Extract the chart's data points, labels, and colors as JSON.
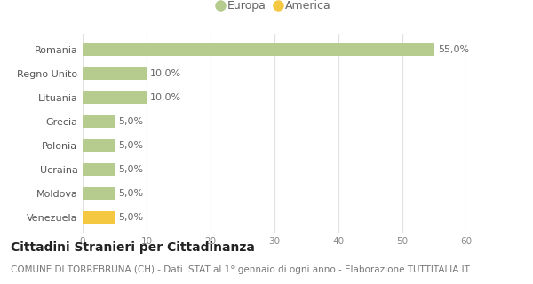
{
  "categories": [
    "Venezuela",
    "Moldova",
    "Ucraina",
    "Polonia",
    "Grecia",
    "Lituania",
    "Regno Unito",
    "Romania"
  ],
  "values": [
    5.0,
    5.0,
    5.0,
    5.0,
    5.0,
    10.0,
    10.0,
    55.0
  ],
  "colors": [
    "#f5c842",
    "#b5cc8e",
    "#b5cc8e",
    "#b5cc8e",
    "#b5cc8e",
    "#b5cc8e",
    "#b5cc8e",
    "#b5cc8e"
  ],
  "labels": [
    "5,0%",
    "5,0%",
    "5,0%",
    "5,0%",
    "5,0%",
    "10,0%",
    "10,0%",
    "55,0%"
  ],
  "legend": [
    {
      "label": "Europa",
      "color": "#b5cc8e"
    },
    {
      "label": "America",
      "color": "#f5c842"
    }
  ],
  "xlim": [
    0,
    60
  ],
  "xticks": [
    0,
    10,
    20,
    30,
    40,
    50,
    60
  ],
  "title": "Cittadini Stranieri per Cittadinanza",
  "subtitle": "COMUNE DI TORREBRUNA (CH) - Dati ISTAT al 1° gennaio di ogni anno - Elaborazione TUTTITALIA.IT",
  "background_color": "#ffffff",
  "grid_color": "#e0e0e0",
  "bar_height": 0.52,
  "label_fontsize": 8,
  "title_fontsize": 10,
  "subtitle_fontsize": 7.5
}
